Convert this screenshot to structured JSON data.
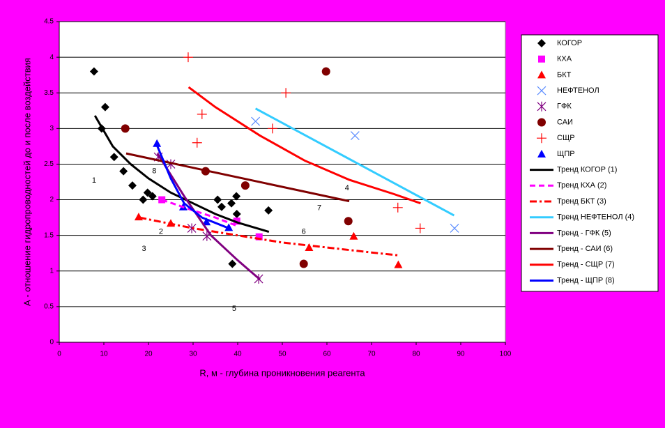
{
  "chart_data": {
    "type": "scatter",
    "xlabel": "R,  м - глубина проникновения реагента",
    "ylabel": "А - отношение гидропроводностей до и после воздействия",
    "xlim": [
      0,
      100
    ],
    "ylim": [
      0,
      4.5
    ],
    "xticks": [
      0,
      10,
      20,
      30,
      40,
      50,
      60,
      70,
      80,
      90,
      100
    ],
    "yticks": [
      0,
      0.5,
      1,
      1.5,
      2,
      2.5,
      3,
      3.5,
      4,
      4.5
    ],
    "grid": true,
    "legend": "right",
    "series": [
      {
        "name": "КОГОР",
        "color": "#000000",
        "marker": "diamond",
        "x": [
          7.8,
          10.3,
          9.5,
          12.3,
          14.4,
          16.4,
          19.8,
          20.9,
          18.8,
          35.5,
          39.7,
          36.4,
          38.6,
          39.8,
          46.9,
          38.8
        ],
        "values": [
          3.8,
          3.3,
          3.0,
          2.6,
          2.4,
          2.2,
          2.1,
          2.05,
          2.0,
          2.0,
          2.05,
          1.9,
          1.95,
          1.8,
          1.85,
          1.1
        ]
      },
      {
        "name": "КХА",
        "color": "#ff00ff",
        "marker": "square",
        "x": [
          23,
          39.8,
          44.8
        ],
        "values": [
          2.0,
          1.7,
          1.48
        ]
      },
      {
        "name": "БКТ",
        "color": "#ff0000",
        "marker": "triangle",
        "x": [
          17.8,
          25,
          56,
          66,
          76
        ],
        "values": [
          1.76,
          1.67,
          1.33,
          1.49,
          1.09
        ]
      },
      {
        "name": "НЕФТЕНОЛ",
        "color": "#5b8cff",
        "marker": "x",
        "x": [
          44,
          66.3,
          88.6
        ],
        "values": [
          3.1,
          2.9,
          1.6
        ]
      },
      {
        "name": "ГФК",
        "color": "#800080",
        "marker": "star",
        "x": [
          22.2,
          25,
          29.7,
          33.1,
          44.7
        ],
        "values": [
          2.6,
          2.5,
          1.6,
          1.49,
          0.89
        ]
      },
      {
        "name": "САИ",
        "color": "#800000",
        "marker": "circle",
        "x": [
          14.8,
          32.8,
          41.7,
          59.8,
          64.8,
          54.8
        ],
        "values": [
          3.0,
          2.4,
          2.2,
          3.8,
          1.7,
          1.1
        ]
      },
      {
        "name": "СЩР",
        "color": "#ff0000",
        "marker": "plus",
        "x": [
          28.9,
          50.8,
          32,
          30.9,
          47.8,
          75.9,
          80.9
        ],
        "values": [
          4.0,
          3.5,
          3.2,
          2.8,
          3.0,
          1.89,
          1.6
        ]
      },
      {
        "name": "ЩПР",
        "color": "#0000ff",
        "marker": "triangle",
        "x": [
          21.9,
          27.8,
          33,
          38
        ],
        "values": [
          2.79,
          1.9,
          1.69,
          1.61
        ]
      },
      {
        "name": "Тренд КОГОР (1)",
        "color": "#000000",
        "line_style": "solid",
        "x": [
          8,
          12,
          16,
          20,
          25,
          30,
          35,
          40,
          47
        ],
        "values": [
          3.18,
          2.75,
          2.5,
          2.3,
          2.1,
          1.95,
          1.8,
          1.68,
          1.55
        ]
      },
      {
        "name": "Тренд КХА (2)",
        "color": "#ff00ff",
        "line_style": "dash",
        "x": [
          23,
          30,
          35,
          40
        ],
        "values": [
          2.0,
          1.85,
          1.75,
          1.63
        ]
      },
      {
        "name": "Тренд БКТ (3)",
        "color": "#ff0000",
        "line_style": "dashdot",
        "x": [
          18,
          30,
          40,
          50,
          60,
          70,
          76
        ],
        "values": [
          1.75,
          1.6,
          1.5,
          1.4,
          1.33,
          1.26,
          1.22
        ]
      },
      {
        "name": "Тренд НЕФТЕНОЛ (4)",
        "color": "#33ccff",
        "line_style": "solid",
        "x": [
          44,
          88.5
        ],
        "values": [
          3.28,
          1.78
        ]
      },
      {
        "name": "Тренд - ГФК  (5)",
        "color": "#800080",
        "line_style": "solid",
        "x": [
          22,
          28,
          34,
          40,
          45
        ],
        "values": [
          2.65,
          2.05,
          1.5,
          1.15,
          0.88
        ]
      },
      {
        "name": "Тренд - САИ (6)",
        "color": "#800000",
        "line_style": "solid",
        "x": [
          15,
          65
        ],
        "values": [
          2.65,
          1.98
        ]
      },
      {
        "name": "Тренд - СЩР (7)",
        "color": "#ff0000",
        "line_style": "solid",
        "x": [
          29,
          35,
          45,
          55,
          65,
          75,
          81
        ],
        "values": [
          3.58,
          3.3,
          2.9,
          2.55,
          2.28,
          2.08,
          1.95
        ]
      },
      {
        "name": "Тренд - ЩПР (8)",
        "color": "#0000ff",
        "line_style": "solid",
        "x": [
          22,
          25,
          28,
          32,
          38
        ],
        "values": [
          2.75,
          2.3,
          1.95,
          1.75,
          1.6
        ]
      }
    ],
    "annotations": [
      {
        "text": "1",
        "x": 7.8,
        "y": 2.27
      },
      {
        "text": "2",
        "x": 22.8,
        "y": 1.55
      },
      {
        "text": "3",
        "x": 19,
        "y": 1.31
      },
      {
        "text": "4",
        "x": 64.5,
        "y": 2.16
      },
      {
        "text": "5",
        "x": 39.2,
        "y": 0.47
      },
      {
        "text": "6",
        "x": 54.8,
        "y": 1.55
      },
      {
        "text": "7",
        "x": 58.3,
        "y": 1.88
      },
      {
        "text": "8",
        "x": 21.3,
        "y": 2.4
      }
    ]
  }
}
